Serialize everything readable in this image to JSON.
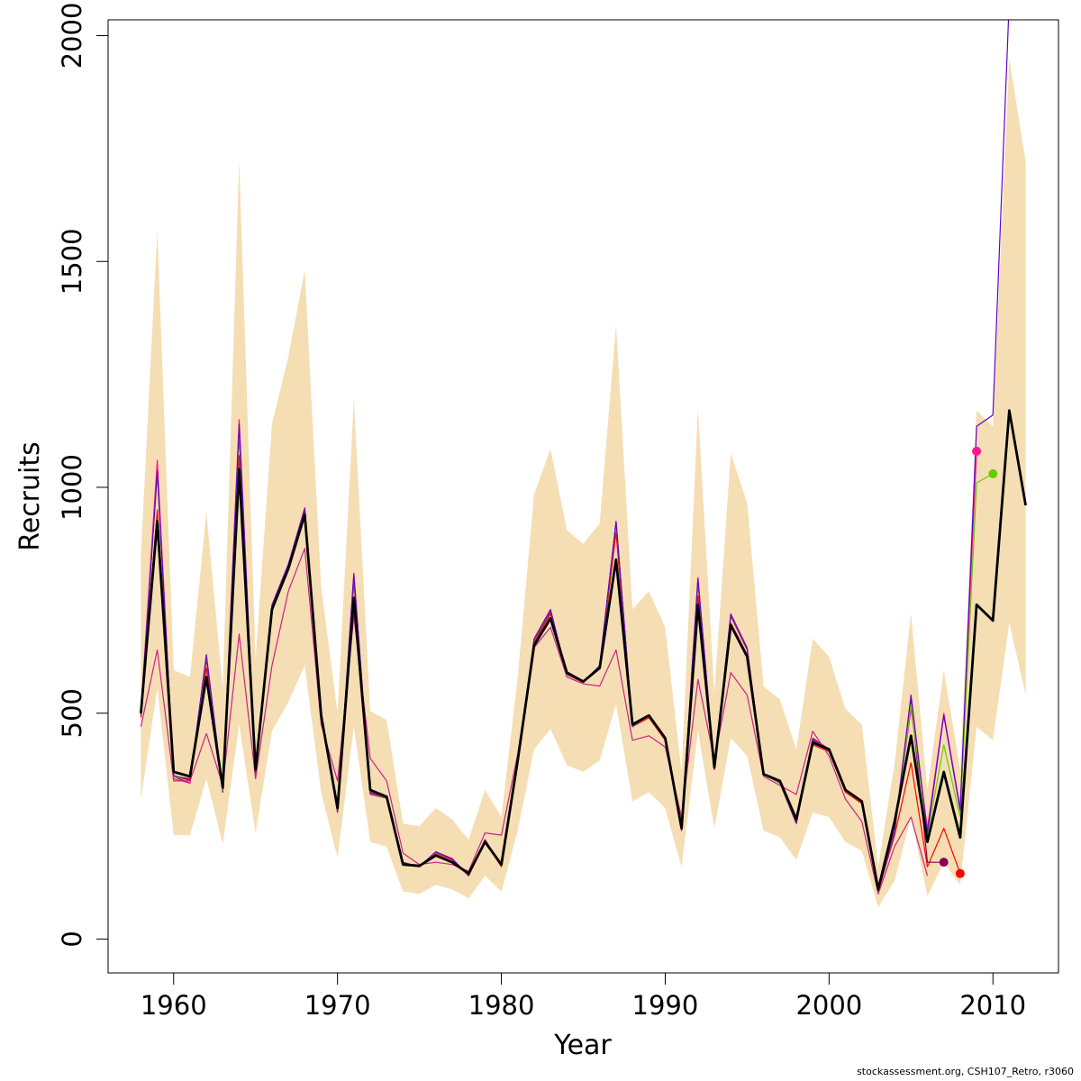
{
  "chart_data": {
    "type": "line",
    "title": "",
    "xlabel": "Year",
    "ylabel": "Recruits",
    "xlim": [
      1956,
      2014
    ],
    "ylim": [
      -75,
      2035
    ],
    "x_ticks": [
      1960,
      1970,
      1980,
      1990,
      2000,
      2010
    ],
    "y_ticks": [
      0,
      500,
      1000,
      1500,
      2000
    ],
    "legend": "none",
    "grid": false,
    "colors": {
      "band": "#f5deb3",
      "main": "#000000",
      "peel_1": "#ff0000",
      "peel_2": "#8b0057",
      "peel_3": "#ff1493",
      "peel_4": "#66cc00",
      "peel_5": "#6600cc",
      "peel_6": "#cc2288"
    },
    "confidence_band": {
      "x": [
        1958,
        1959,
        1960,
        1961,
        1962,
        1963,
        1964,
        1965,
        1966,
        1967,
        1968,
        1969,
        1970,
        1971,
        1972,
        1973,
        1974,
        1975,
        1976,
        1977,
        1978,
        1979,
        1980,
        1981,
        1982,
        1983,
        1984,
        1985,
        1986,
        1987,
        1988,
        1989,
        1990,
        1991,
        1992,
        1993,
        1994,
        1995,
        1996,
        1997,
        1998,
        1999,
        2000,
        2001,
        2002,
        2003,
        2004,
        2005,
        2006,
        2007,
        2008,
        2009,
        2010,
        2011,
        2012
      ],
      "upper": [
        850,
        1570,
        595,
        580,
        945,
        555,
        1725,
        620,
        1140,
        1290,
        1480,
        780,
        500,
        1195,
        505,
        485,
        255,
        250,
        290,
        265,
        220,
        330,
        270,
        580,
        985,
        1085,
        905,
        875,
        920,
        1360,
        730,
        770,
        690,
        370,
        1175,
        545,
        1075,
        965,
        560,
        530,
        420,
        665,
        625,
        510,
        475,
        160,
        390,
        720,
        330,
        595,
        375,
        1170,
        1135,
        1950,
        1720
      ],
      "lower": [
        310,
        555,
        230,
        230,
        355,
        210,
        475,
        235,
        460,
        525,
        605,
        325,
        180,
        470,
        215,
        205,
        105,
        100,
        120,
        110,
        90,
        140,
        105,
        240,
        420,
        465,
        385,
        370,
        395,
        520,
        305,
        325,
        290,
        160,
        460,
        245,
        445,
        405,
        240,
        225,
        175,
        280,
        270,
        215,
        195,
        70,
        130,
        270,
        95,
        170,
        120,
        470,
        440,
        700,
        540
      ]
    },
    "series": [
      {
        "x": [
          1958,
          1959,
          1960,
          1961,
          1962,
          1963,
          1964,
          1965,
          1966,
          1967,
          1968,
          1969,
          1970,
          1971,
          1972,
          1973,
          1974,
          1975,
          1976,
          1977,
          1978,
          1979,
          1980,
          1981,
          1982,
          1983,
          1984,
          1985,
          1986,
          1987,
          1988,
          1989,
          1990,
          1991,
          1992,
          1993,
          1994,
          1995,
          1996,
          1997,
          1998,
          1999,
          2000,
          2001,
          2002,
          2003,
          2004,
          2005,
          2006,
          2007,
          2008,
          2009,
          2010,
          2011,
          2012
        ],
        "values": [
          500,
          925,
          370,
          360,
          580,
          335,
          1040,
          375,
          730,
          820,
          940,
          495,
          290,
          755,
          330,
          315,
          165,
          162,
          185,
          170,
          145,
          215,
          165,
          395,
          650,
          710,
          590,
          570,
          600,
          840,
          475,
          495,
          445,
          245,
          740,
          380,
          695,
          625,
          365,
          350,
          265,
          435,
          420,
          330,
          305,
          110,
          260,
          450,
          215,
          370,
          225,
          740,
          705,
          1170,
          960
        ],
        "color": "#000000",
        "width": 2.8
      },
      {
        "x": [
          1958,
          1959,
          1960,
          1961,
          1962,
          1963,
          1964,
          1965,
          1966,
          1967,
          1968,
          1969,
          1970,
          1971,
          1972,
          1973,
          1974,
          1975,
          1976,
          1977,
          1978,
          1979,
          1980,
          1981,
          1982,
          1983,
          1984,
          1985,
          1986,
          1987,
          1988,
          1989,
          1990,
          1991,
          1992,
          1993,
          1994,
          1995,
          1996,
          1997,
          1998,
          1999,
          2000,
          2001,
          2002,
          2003,
          2004,
          2005,
          2006,
          2007,
          2008
        ],
        "values": [
          490,
          950,
          360,
          355,
          600,
          330,
          1070,
          370,
          725,
          820,
          945,
          490,
          285,
          790,
          325,
          315,
          165,
          160,
          190,
          175,
          140,
          215,
          160,
          390,
          655,
          720,
          585,
          570,
          600,
          900,
          470,
          490,
          440,
          240,
          760,
          375,
          700,
          630,
          365,
          345,
          260,
          430,
          415,
          325,
          300,
          105,
          230,
          390,
          160,
          245,
          145
        ],
        "color": "#ff0000",
        "width": 1.2
      },
      {
        "x": [
          1958,
          1959,
          1960,
          1961,
          1962,
          1963,
          1964,
          1965,
          1966,
          1967,
          1968,
          1969,
          1970,
          1971,
          1972,
          1973,
          1974,
          1975,
          1976,
          1977,
          1978,
          1979,
          1980,
          1981,
          1982,
          1983,
          1984,
          1985,
          1986,
          1987,
          1988,
          1989,
          1990,
          1991,
          1992,
          1993,
          1994,
          1995,
          1996,
          1997,
          1998,
          1999,
          2000,
          2001,
          2002,
          2003,
          2004,
          2005,
          2006,
          2007
        ],
        "values": [
          495,
          1040,
          360,
          345,
          620,
          325,
          1120,
          365,
          735,
          825,
          950,
          490,
          280,
          800,
          320,
          312,
          170,
          160,
          192,
          178,
          140,
          220,
          162,
          390,
          660,
          725,
          585,
          568,
          605,
          920,
          470,
          495,
          445,
          245,
          790,
          375,
          715,
          640,
          365,
          345,
          255,
          440,
          420,
          330,
          305,
          105,
          235,
          530,
          170,
          170
        ],
        "color": "#8b0057",
        "width": 1.2
      },
      {
        "x": [
          1958,
          1959,
          1960,
          1961,
          1962,
          1963,
          1964,
          1965,
          1966,
          1967,
          1968,
          1969,
          1970,
          1971,
          1972,
          1973,
          1974,
          1975,
          1976,
          1977,
          1978,
          1979,
          1980,
          1981,
          1982,
          1983,
          1984,
          1985,
          1986,
          1987,
          1988,
          1989,
          1990,
          1991,
          1992,
          1993,
          1994,
          1995,
          1996,
          1997,
          1998,
          1999,
          2000,
          2001,
          2002,
          2003,
          2004,
          2005,
          2006,
          2007,
          2008,
          2009
        ],
        "values": [
          505,
          1060,
          355,
          345,
          630,
          330,
          1150,
          360,
          740,
          830,
          955,
          495,
          280,
          810,
          320,
          314,
          168,
          160,
          193,
          178,
          140,
          220,
          163,
          392,
          665,
          730,
          585,
          568,
          605,
          925,
          470,
          495,
          445,
          245,
          800,
          375,
          720,
          645,
          365,
          345,
          255,
          445,
          420,
          330,
          305,
          105,
          240,
          510,
          245,
          500,
          290,
          1080
        ],
        "color": "#ff1493",
        "width": 1.2
      },
      {
        "x": [
          1958,
          1959,
          1960,
          1961,
          1962,
          1963,
          1964,
          1965,
          1966,
          1967,
          1968,
          1969,
          1970,
          1971,
          1972,
          1973,
          1974,
          1975,
          1976,
          1977,
          1978,
          1979,
          1980,
          1981,
          1982,
          1983,
          1984,
          1985,
          1986,
          1987,
          1988,
          1989,
          1990,
          1991,
          1992,
          1993,
          1994,
          1995,
          1996,
          1997,
          1998,
          1999,
          2000,
          2001,
          2002,
          2003,
          2004,
          2005,
          2006,
          2007,
          2008,
          2009,
          2010
        ],
        "values": [
          500,
          1030,
          360,
          350,
          625,
          330,
          1130,
          362,
          738,
          828,
          952,
          492,
          282,
          805,
          322,
          314,
          168,
          160,
          192,
          177,
          141,
          218,
          163,
          392,
          662,
          728,
          586,
          569,
          604,
          922,
          470,
          494,
          444,
          244,
          795,
          376,
          718,
          642,
          364,
          346,
          256,
          442,
          419,
          330,
          304,
          106,
          238,
          520,
          230,
          430,
          270,
          1010,
          1030
        ],
        "color": "#66cc00",
        "width": 1.2
      },
      {
        "x": [
          1958,
          1959,
          1960,
          1961,
          1962,
          1963,
          1964,
          1965,
          1966,
          1967,
          1968,
          1969,
          1970,
          1971,
          1972,
          1973,
          1974,
          1975,
          1976,
          1977,
          1978,
          1979,
          1980,
          1981,
          1982,
          1983,
          1984,
          1985,
          1986,
          1987,
          1988,
          1989,
          1990,
          1991,
          1992,
          1993,
          1994,
          1995,
          1996,
          1997,
          1998,
          1999,
          2000,
          2001,
          2002,
          2003,
          2004,
          2005,
          2006,
          2007,
          2008,
          2009,
          2010,
          2011
        ],
        "values": [
          498,
          1035,
          362,
          352,
          628,
          332,
          1140,
          363,
          739,
          829,
          953,
          493,
          283,
          808,
          323,
          315,
          169,
          161,
          193,
          177,
          141,
          219,
          164,
          393,
          664,
          729,
          587,
          570,
          605,
          924,
          471,
          495,
          445,
          245,
          798,
          377,
          719,
          643,
          365,
          347,
          257,
          443,
          420,
          331,
          305,
          106,
          240,
          540,
          235,
          495,
          285,
          1135,
          1160,
          2080
        ],
        "color": "#6600cc",
        "width": 1.2
      },
      {
        "x": [
          1958,
          1959,
          1960,
          1961,
          1962,
          1963,
          1964,
          1965,
          1966,
          1967,
          1968,
          1969,
          1970,
          1971,
          1972,
          1973,
          1974,
          1975,
          1976,
          1977,
          1978,
          1979,
          1980,
          1981,
          1982,
          1983,
          1984,
          1985,
          1986,
          1987,
          1988,
          1989,
          1990,
          1991,
          1992,
          1993,
          1994,
          1995,
          1996,
          1997,
          1998,
          1999,
          2000,
          2001,
          2002,
          2003,
          2004,
          2005,
          2006
        ],
        "values": [
          470,
          640,
          350,
          350,
          455,
          340,
          675,
          355,
          605,
          770,
          865,
          475,
          350,
          715,
          400,
          350,
          190,
          165,
          170,
          165,
          150,
          235,
          230,
          410,
          645,
          690,
          580,
          565,
          560,
          640,
          440,
          450,
          425,
          270,
          575,
          395,
          590,
          540,
          360,
          340,
          320,
          460,
          405,
          310,
          260,
          100,
          205,
          270,
          140
        ],
        "color": "#cc2288",
        "width": 1.2
      }
    ],
    "end_points": [
      {
        "x": 2007,
        "y": 170,
        "color": "#8b0057"
      },
      {
        "x": 2008,
        "y": 145,
        "color": "#ff0000"
      },
      {
        "x": 2009,
        "y": 1080,
        "color": "#ff1493"
      },
      {
        "x": 2010,
        "y": 1030,
        "color": "#66cc00"
      }
    ]
  },
  "footer_text": "stockassessment.org, CSH107_Retro, r3060"
}
